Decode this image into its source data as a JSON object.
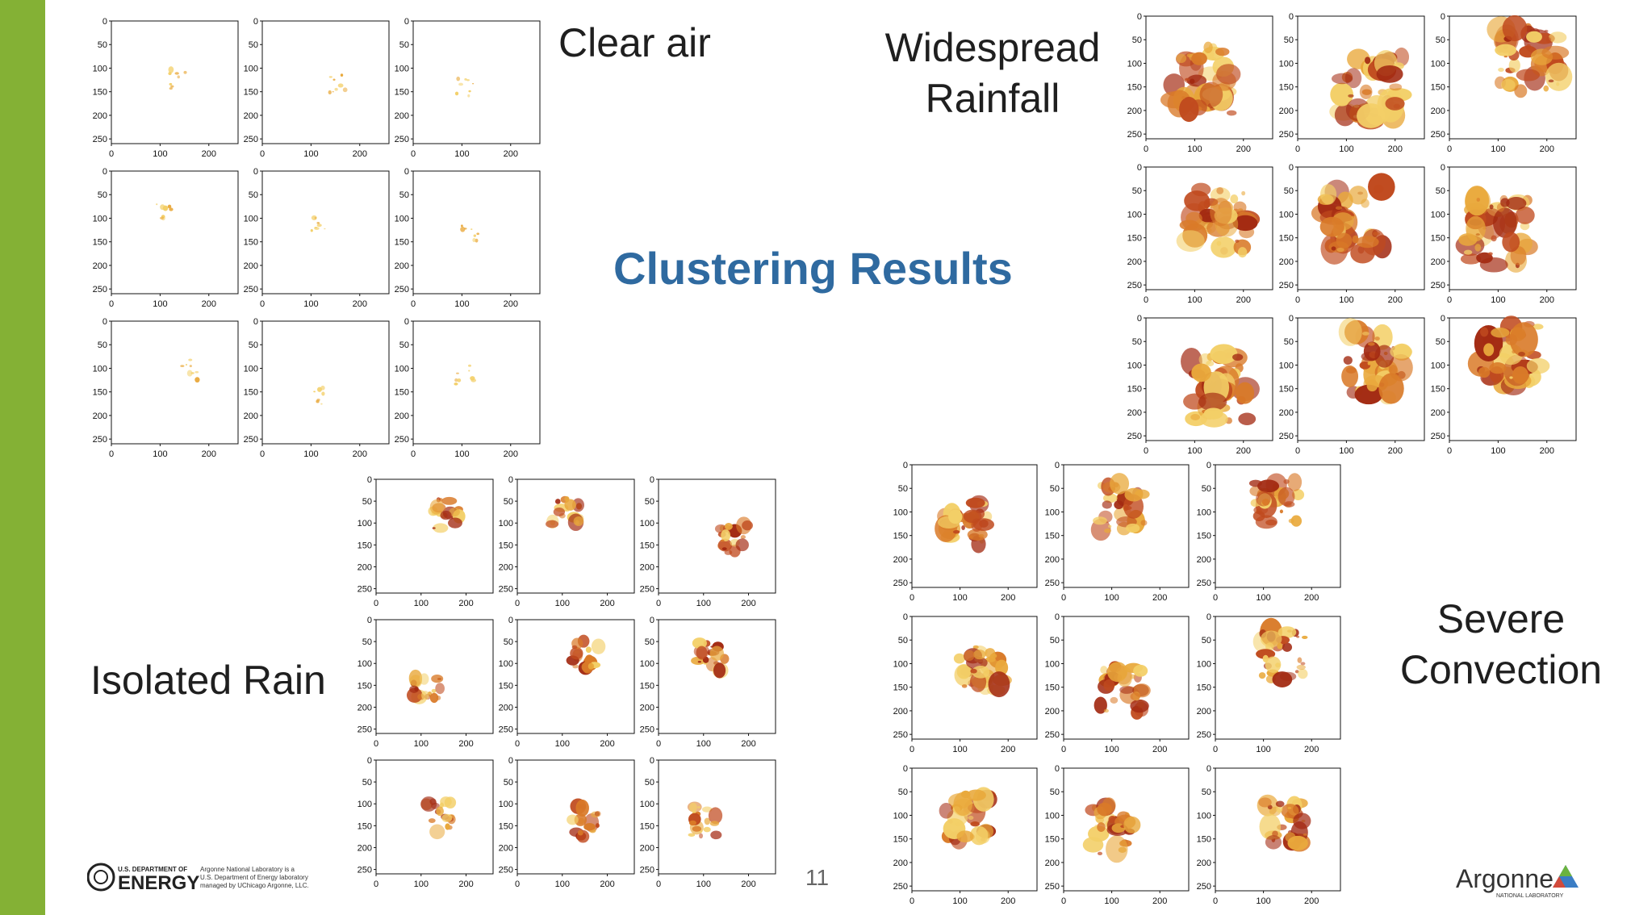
{
  "slide": {
    "title": "Clustering Results",
    "page_number": "11",
    "accent_color": "#84b135",
    "title_color": "#2f6aa0"
  },
  "clusters": [
    {
      "name": "Clear air",
      "key": "clear_air"
    },
    {
      "name": "Widespread Rainfall",
      "key": "widespread"
    },
    {
      "name": "Isolated Rain",
      "key": "isolated"
    },
    {
      "name": "Severe Convection",
      "key": "severe"
    }
  ],
  "panel_axes": {
    "y_ticks": [
      "0",
      "50",
      "100",
      "150",
      "200",
      "250"
    ],
    "x_ticks": [
      "0",
      "100",
      "200"
    ]
  },
  "colormap": [
    "#f3cf67",
    "#e9a93c",
    "#d97a28",
    "#c04a1e",
    "#a32a12"
  ],
  "footer": {
    "doe_line1": "U.S. DEPARTMENT OF",
    "doe_line2": "ENERGY",
    "doe_text1": "Argonne National Laboratory is a",
    "doe_text2": "U.S. Department of Energy laboratory",
    "doe_text3": "managed by UChicago Argonne, LLC.",
    "argonne_name": "Argonne",
    "argonne_sub": "NATIONAL LABORATORY"
  }
}
